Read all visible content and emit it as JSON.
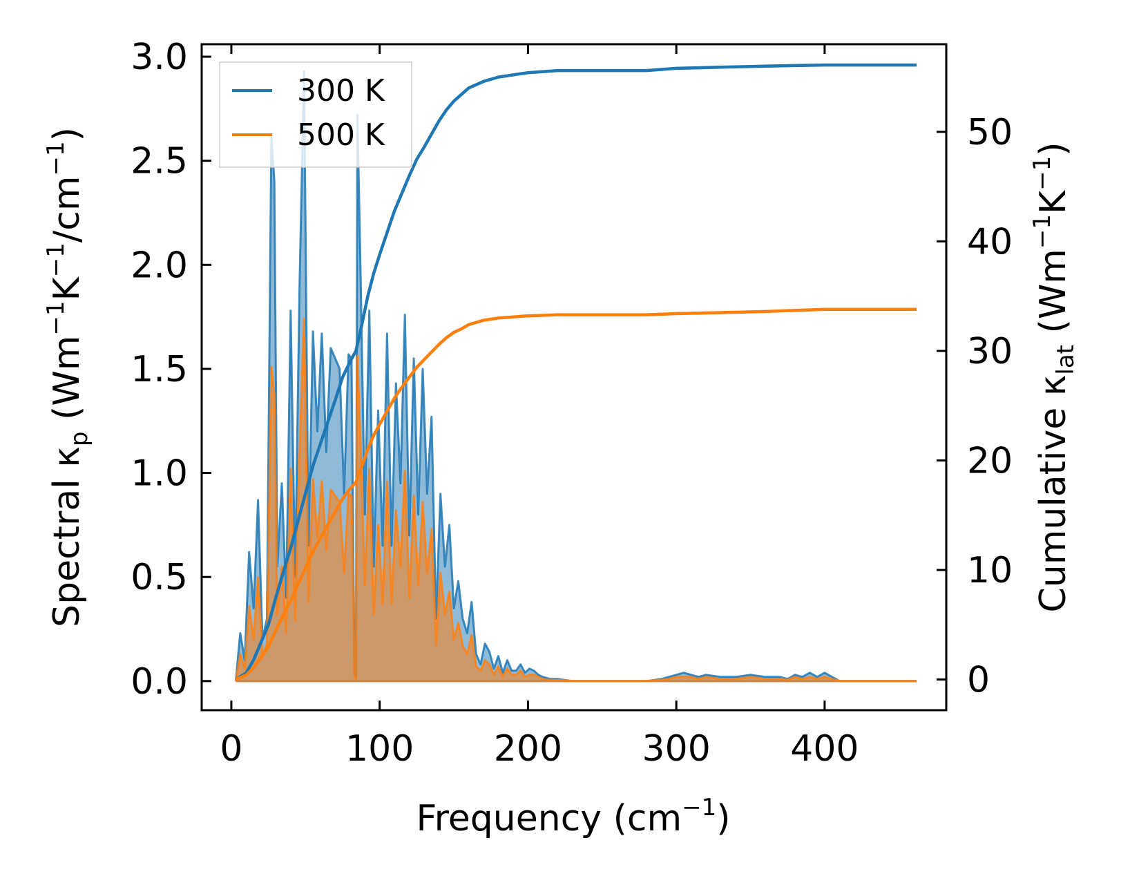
{
  "chart_data": {
    "type": "area",
    "xlabel": "Frequency (cm",
    "xlabel_sup": "−1",
    "xlabel_tail": ")",
    "ylabel_left": {
      "main": "Spectral κ",
      "sub": "p",
      "unit_open": " (Wm",
      "sup1": "−1",
      "k": "K",
      "sup2": "−1",
      "per": "/cm",
      "sup3": "−1",
      "close": ")"
    },
    "ylabel_right": {
      "main": "Cumulative κ",
      "sub": "lat",
      "unit_open": " (Wm",
      "sup1": "−1",
      "k": "K",
      "sup2": "−1",
      "close": ")"
    },
    "xlim": [
      -20,
      482
    ],
    "ylim_left": [
      -0.14,
      3.06
    ],
    "ylim_right": [
      -2.8,
      58.0
    ],
    "x_ticks": [
      0,
      100,
      200,
      300,
      400
    ],
    "x_tick_labels": [
      "0",
      "100",
      "200",
      "300",
      "400"
    ],
    "y_left_ticks": [
      0.0,
      0.5,
      1.0,
      1.5,
      2.0,
      2.5,
      3.0
    ],
    "y_left_tick_labels": [
      "0.0",
      "0.5",
      "1.0",
      "1.5",
      "2.0",
      "2.5",
      "3.0"
    ],
    "y_right_ticks": [
      0,
      10,
      20,
      30,
      40,
      50
    ],
    "y_right_tick_labels": [
      "0",
      "10",
      "20",
      "30",
      "40",
      "50"
    ],
    "legend_position": "top-left",
    "grid": false,
    "series": [
      {
        "name": "300 K",
        "color": "#1f77b4",
        "spectral_x": [
          3,
          6,
          9,
          12,
          15,
          18,
          21,
          24,
          27,
          29,
          31,
          34,
          37,
          40,
          43,
          46,
          49,
          52,
          55,
          58,
          61,
          64,
          67,
          70,
          73,
          76,
          79,
          81,
          83,
          84,
          85,
          87,
          90,
          93,
          96,
          99,
          102,
          105,
          108,
          111,
          114,
          117,
          120,
          123,
          126,
          129,
          132,
          135,
          138,
          141,
          144,
          147,
          150,
          153,
          156,
          159,
          162,
          165,
          168,
          171,
          174,
          177,
          180,
          183,
          186,
          189,
          192,
          195,
          198,
          201,
          204,
          207,
          210,
          215,
          220,
          225,
          230,
          240,
          250,
          260,
          270,
          280,
          290,
          295,
          300,
          305,
          310,
          315,
          320,
          330,
          340,
          350,
          360,
          370,
          375,
          380,
          385,
          390,
          395,
          400,
          410,
          420,
          440,
          462
        ],
        "spectral_y": [
          0.0,
          0.23,
          0.1,
          0.62,
          0.35,
          0.87,
          0.2,
          0.3,
          2.62,
          2.4,
          0.55,
          0.95,
          0.4,
          1.78,
          0.5,
          1.9,
          2.93,
          0.65,
          1.68,
          1.2,
          1.67,
          1.1,
          1.6,
          1.55,
          1.5,
          0.9,
          1.57,
          1.55,
          0.03,
          0.02,
          2.72,
          2.0,
          0.8,
          1.78,
          0.55,
          1.3,
          0.65,
          1.67,
          0.65,
          1.43,
          0.95,
          1.76,
          0.7,
          1.55,
          0.8,
          1.5,
          0.9,
          1.27,
          0.3,
          0.9,
          0.55,
          0.75,
          0.35,
          0.48,
          0.3,
          0.23,
          0.38,
          0.13,
          0.08,
          0.18,
          0.14,
          0.06,
          0.12,
          0.04,
          0.1,
          0.05,
          0.05,
          0.08,
          0.04,
          0.06,
          0.05,
          0.03,
          0.02,
          0.01,
          0.01,
          0.005,
          0.0,
          0.0,
          0.0,
          0.0,
          0.0,
          0.0,
          0.01,
          0.02,
          0.03,
          0.04,
          0.03,
          0.02,
          0.03,
          0.02,
          0.02,
          0.03,
          0.02,
          0.02,
          0.01,
          0.03,
          0.02,
          0.04,
          0.02,
          0.04,
          0.0,
          0.0,
          0.0,
          0.0
        ],
        "cumulative_x": [
          3,
          10,
          15,
          20,
          25,
          30,
          35,
          40,
          45,
          50,
          55,
          60,
          65,
          70,
          75,
          80,
          84,
          88,
          92,
          96,
          100,
          105,
          110,
          115,
          120,
          125,
          130,
          135,
          140,
          145,
          150,
          155,
          160,
          170,
          180,
          200,
          220,
          250,
          280,
          300,
          330,
          360,
          400,
          462
        ],
        "cumulative_y": [
          0,
          0.6,
          1.8,
          3.4,
          5.0,
          7.5,
          9.8,
          12.0,
          14.5,
          17.0,
          19.5,
          21.5,
          23.5,
          25.5,
          27.6,
          29.0,
          30.0,
          32.4,
          35.0,
          37.1,
          38.8,
          40.8,
          42.8,
          44.4,
          46.0,
          47.5,
          48.6,
          49.8,
          51.0,
          52.0,
          52.8,
          53.4,
          54.0,
          54.6,
          55.0,
          55.4,
          55.6,
          55.6,
          55.6,
          55.8,
          55.9,
          56.0,
          56.1,
          56.1
        ]
      },
      {
        "name": "500 K",
        "color": "#ff7f0e",
        "spectral_x": [
          3,
          6,
          9,
          12,
          15,
          18,
          21,
          24,
          27,
          29,
          31,
          34,
          37,
          40,
          43,
          46,
          49,
          52,
          55,
          58,
          61,
          64,
          67,
          70,
          73,
          76,
          79,
          81,
          83,
          84,
          85,
          87,
          90,
          93,
          96,
          99,
          102,
          105,
          108,
          111,
          114,
          117,
          120,
          123,
          126,
          129,
          132,
          135,
          138,
          141,
          144,
          147,
          150,
          153,
          156,
          159,
          162,
          165,
          168,
          171,
          174,
          177,
          180,
          183,
          186,
          189,
          192,
          195,
          198,
          201,
          204,
          207,
          210,
          215,
          220,
          225,
          230,
          240,
          250,
          260,
          270,
          280,
          290,
          295,
          300,
          305,
          310,
          315,
          320,
          330,
          340,
          350,
          360,
          370,
          375,
          380,
          385,
          390,
          395,
          400,
          410,
          420,
          440,
          462
        ],
        "spectral_y": [
          0.0,
          0.13,
          0.06,
          0.36,
          0.2,
          0.5,
          0.12,
          0.18,
          1.51,
          1.38,
          0.32,
          0.55,
          0.23,
          1.02,
          0.29,
          1.09,
          1.74,
          0.38,
          0.97,
          0.69,
          0.96,
          0.63,
          0.92,
          0.89,
          0.86,
          0.52,
          0.9,
          0.89,
          0.02,
          0.01,
          1.56,
          1.15,
          0.46,
          1.02,
          0.32,
          0.75,
          0.37,
          0.96,
          0.37,
          0.82,
          0.55,
          1.01,
          0.4,
          0.89,
          0.46,
          0.86,
          0.52,
          0.73,
          0.17,
          0.52,
          0.32,
          0.43,
          0.2,
          0.28,
          0.17,
          0.13,
          0.22,
          0.07,
          0.05,
          0.1,
          0.08,
          0.03,
          0.07,
          0.02,
          0.06,
          0.03,
          0.03,
          0.05,
          0.02,
          0.03,
          0.03,
          0.02,
          0.01,
          0.005,
          0.005,
          0.003,
          0.0,
          0.0,
          0.0,
          0.0,
          0.0,
          0.0,
          0.006,
          0.01,
          0.02,
          0.02,
          0.02,
          0.01,
          0.02,
          0.01,
          0.01,
          0.02,
          0.01,
          0.01,
          0.006,
          0.02,
          0.01,
          0.02,
          0.01,
          0.02,
          0.0,
          0.0,
          0.0,
          0.0
        ],
        "cumulative_x": [
          3,
          10,
          15,
          20,
          25,
          30,
          35,
          40,
          45,
          50,
          55,
          60,
          65,
          70,
          75,
          80,
          84,
          88,
          92,
          96,
          100,
          105,
          110,
          115,
          120,
          125,
          130,
          135,
          140,
          145,
          150,
          155,
          160,
          170,
          180,
          200,
          220,
          250,
          280,
          300,
          330,
          360,
          400,
          462
        ],
        "cumulative_y": [
          0,
          0.4,
          1.1,
          2.0,
          3.0,
          4.5,
          5.9,
          7.2,
          8.7,
          10.2,
          11.7,
          12.9,
          14.1,
          15.3,
          16.5,
          17.4,
          18.0,
          19.5,
          21.0,
          22.3,
          23.3,
          24.5,
          25.7,
          26.7,
          27.6,
          28.5,
          29.2,
          29.9,
          30.6,
          31.2,
          31.7,
          32.0,
          32.4,
          32.8,
          33.0,
          33.2,
          33.3,
          33.3,
          33.3,
          33.4,
          33.5,
          33.6,
          33.8,
          33.8
        ]
      }
    ]
  }
}
